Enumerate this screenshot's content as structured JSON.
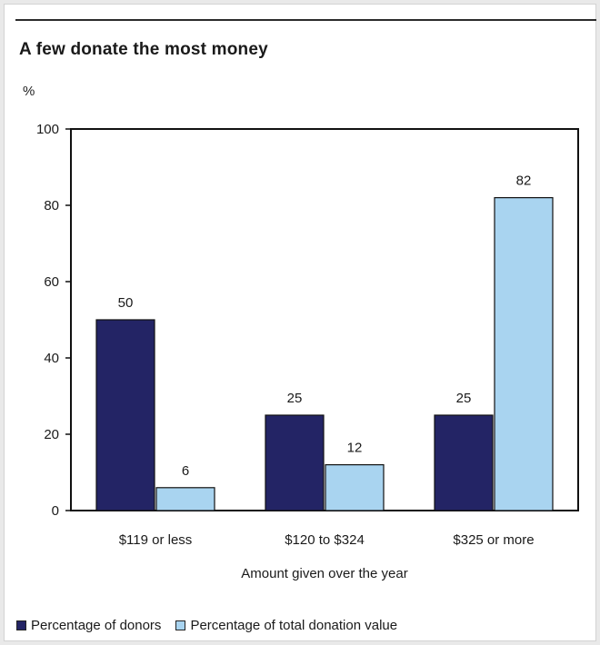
{
  "chart_data": {
    "type": "bar",
    "title": "A few donate the most money",
    "ylabel": "%",
    "xlabel": "Amount given over the year",
    "categories": [
      "$119 or less",
      "$120 to $324",
      "$325 or more"
    ],
    "series": [
      {
        "name": "Percentage of donors",
        "values": [
          50,
          25,
          25
        ],
        "color": "#232465"
      },
      {
        "name": "Percentage of total donation value",
        "values": [
          6,
          12,
          82
        ],
        "color": "#a9d4f0"
      }
    ],
    "ylim": [
      0,
      100
    ],
    "yticks": [
      0,
      20,
      40,
      60,
      80,
      100
    ],
    "grid": false,
    "legend_position": "bottom"
  }
}
